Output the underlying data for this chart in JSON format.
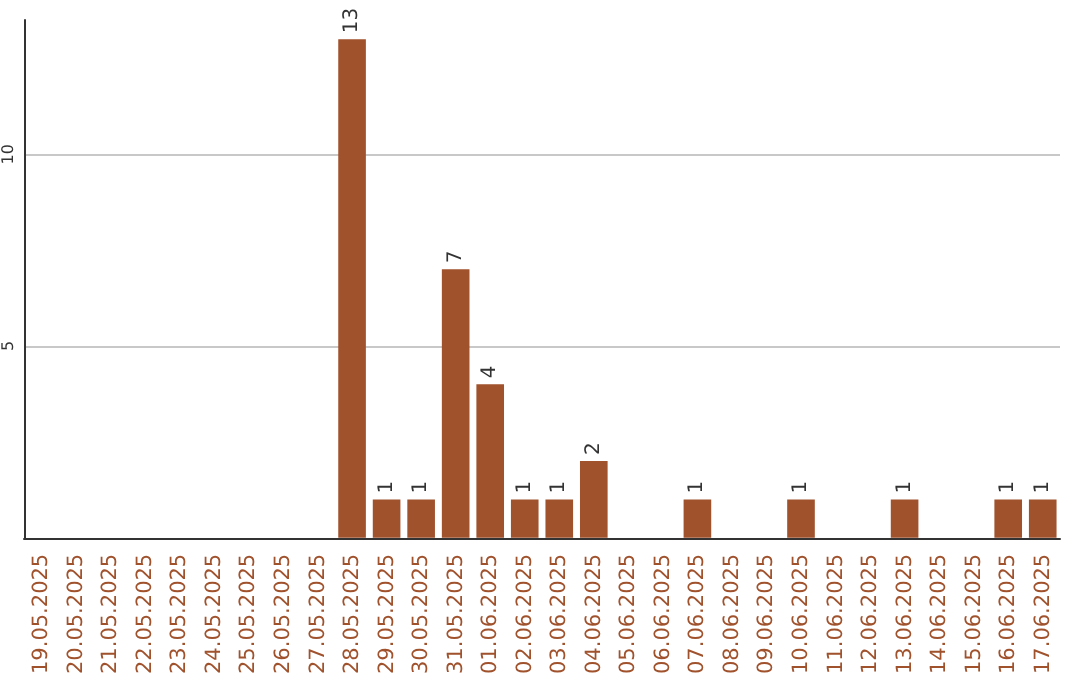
{
  "chart_data": {
    "type": "bar",
    "categories": [
      "19.05.2025",
      "20.05.2025",
      "21.05.2025",
      "22.05.2025",
      "23.05.2025",
      "24.05.2025",
      "25.05.2025",
      "26.05.2025",
      "27.05.2025",
      "28.05.2025",
      "29.05.2025",
      "30.05.2025",
      "31.05.2025",
      "01.06.2025",
      "02.06.2025",
      "03.06.2025",
      "04.06.2025",
      "05.06.2025",
      "06.06.2025",
      "07.06.2025",
      "08.06.2025",
      "09.06.2025",
      "10.06.2025",
      "11.06.2025",
      "12.06.2025",
      "13.06.2025",
      "14.06.2025",
      "15.06.2025",
      "16.06.2025",
      "17.06.2025"
    ],
    "values": [
      0,
      0,
      0,
      0,
      0,
      0,
      0,
      0,
      0,
      13,
      1,
      1,
      7,
      4,
      1,
      1,
      2,
      0,
      0,
      1,
      0,
      0,
      1,
      0,
      0,
      1,
      0,
      0,
      1,
      1
    ],
    "value_labels": [
      null,
      null,
      null,
      null,
      null,
      null,
      null,
      null,
      null,
      "13",
      "1",
      "1",
      "7",
      "4",
      "1",
      "1",
      "2",
      null,
      null,
      "1",
      null,
      null,
      "1",
      null,
      null,
      "1",
      null,
      null,
      "1",
      "1"
    ],
    "color": "#a0522d",
    "ylim": [
      0,
      13.5
    ],
    "yticks": [
      5,
      10
    ],
    "grid": "y"
  }
}
